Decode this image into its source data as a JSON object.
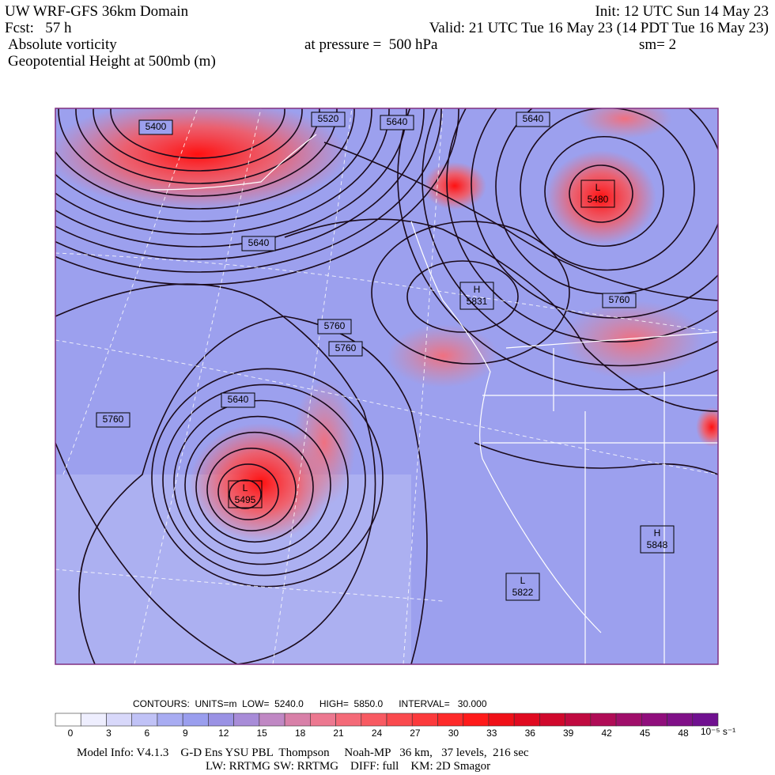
{
  "header": {
    "title": "UW WRF-GFS 36km Domain",
    "init": "Init: 12 UTC Sun 14 May 23",
    "fcst": "Fcst:   57 h",
    "valid": "Valid: 21 UTC Tue 16 May 23 (14 PDT Tue 16 May 23)",
    "field": "Absolute vorticity",
    "pressure": "at pressure =  500 hPa",
    "smoothing": "sm= 2",
    "contour_field": "Geopotential Height at 500mb (m)"
  },
  "map": {
    "contour_labels": [
      "5400",
      "5520",
      "5640",
      "5640",
      "5640",
      "5760",
      "5760",
      "5760",
      "5760",
      "5640"
    ],
    "centers": [
      {
        "type": "L",
        "value": "5480"
      },
      {
        "type": "H",
        "value": "5831"
      },
      {
        "type": "L",
        "value": "5495"
      },
      {
        "type": "H",
        "value": "5848"
      },
      {
        "type": "L",
        "value": "5822"
      }
    ]
  },
  "footer": {
    "contours": "CONTOURS:  UNITS=m  LOW=  5240.0      HIGH=  5850.0      INTERVAL=   30.000",
    "colorbar_labels": [
      0,
      3,
      6,
      9,
      12,
      15,
      18,
      21,
      24,
      27,
      30,
      33,
      36,
      39,
      42,
      45,
      48
    ],
    "colorbar_unit": "10⁻⁵ s⁻¹",
    "model_info": "Model Info: V4.1.3    G-D Ens YSU PBL  Thompson     Noah-MP   36 km,   37 levels,  216 sec",
    "physics": "LW: RRTMG SW: RRTMG    DIFF: full    KM: 2D Smagor"
  }
}
